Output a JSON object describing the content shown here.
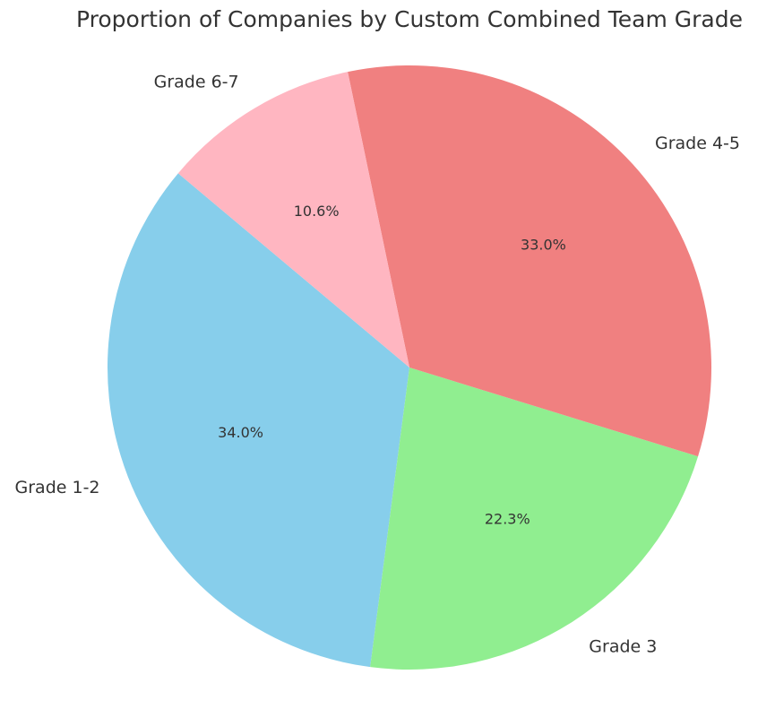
{
  "chart_data": {
    "type": "pie",
    "title": "Proportion of Companies by Custom Combined Team Grade",
    "categories": [
      "Grade 1-2",
      "Grade 3",
      "Grade 4-5",
      "Grade 6-7"
    ],
    "values": [
      34.0,
      22.3,
      33.0,
      10.6
    ],
    "value_labels": [
      "34.0%",
      "22.3%",
      "33.0%",
      "10.6%"
    ],
    "colors": [
      "#87ceeb",
      "#90ee90",
      "#f08080",
      "#ffb6c1"
    ],
    "startangle": 140
  }
}
